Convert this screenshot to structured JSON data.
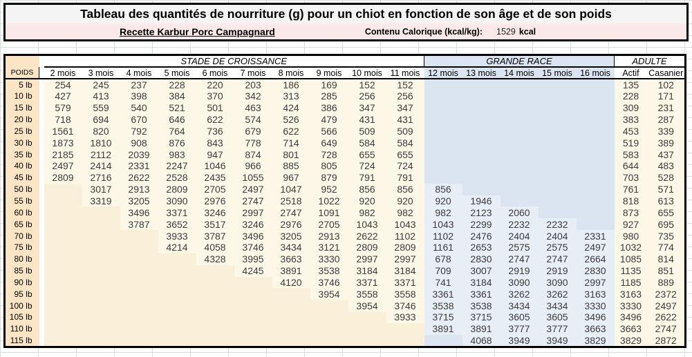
{
  "title": "Tableau des quantités de nourriture (g) pour un chiot en fonction de son âge et de son poids",
  "subtitle": {
    "recipe": "Recette Karbur Porc Campagnard",
    "calorie_label": "Contenu Calorique (kcal/kg):",
    "calorie_value": "1529",
    "calorie_unit": "kcal"
  },
  "table": {
    "corner_label": "POIDS",
    "groups": [
      {
        "label": "STADE DE CROISSANCE",
        "span": 10,
        "style": "cream"
      },
      {
        "label": "GRANDE RACE",
        "span": 5,
        "style": "blue"
      },
      {
        "label": "ADULTE",
        "span": 2,
        "style": "white"
      }
    ],
    "columns": [
      "2 mois",
      "3 mois",
      "4 mois",
      "5 mois",
      "6 mois",
      "7 mois",
      "8 mois",
      "9 mois",
      "10 mois",
      "11 mois",
      "12 mois",
      "13 mois",
      "14 mois",
      "15 mois",
      "16 mois",
      "Actif",
      "Casanier"
    ],
    "rows": [
      {
        "label": "5 lb",
        "values": [
          "254",
          "245",
          "237",
          "228",
          "220",
          "203",
          "186",
          "169",
          "152",
          "152",
          "",
          "",
          "",
          "",
          "",
          "135",
          "102"
        ]
      },
      {
        "label": "10 lb",
        "values": [
          "427",
          "413",
          "398",
          "384",
          "370",
          "342",
          "313",
          "285",
          "256",
          "256",
          "",
          "",
          "",
          "",
          "",
          "228",
          "171"
        ]
      },
      {
        "label": "15 lb",
        "values": [
          "579",
          "559",
          "540",
          "521",
          "501",
          "463",
          "424",
          "386",
          "347",
          "347",
          "",
          "",
          "",
          "",
          "",
          "309",
          "231"
        ]
      },
      {
        "label": "20 lb",
        "values": [
          "718",
          "694",
          "670",
          "646",
          "622",
          "574",
          "526",
          "479",
          "431",
          "431",
          "",
          "",
          "",
          "",
          "",
          "383",
          "287"
        ]
      },
      {
        "label": "25 lb",
        "values": [
          "1561",
          "820",
          "792",
          "764",
          "736",
          "679",
          "622",
          "566",
          "509",
          "509",
          "",
          "",
          "",
          "",
          "",
          "453",
          "339"
        ]
      },
      {
        "label": "30 lb",
        "values": [
          "1873",
          "1810",
          "908",
          "876",
          "843",
          "778",
          "714",
          "649",
          "584",
          "584",
          "",
          "",
          "",
          "",
          "",
          "519",
          "389"
        ]
      },
      {
        "label": "35 lb",
        "values": [
          "2185",
          "2112",
          "2039",
          "983",
          "947",
          "874",
          "801",
          "728",
          "655",
          "655",
          "",
          "",
          "",
          "",
          "",
          "583",
          "437"
        ]
      },
      {
        "label": "40 lb",
        "values": [
          "2497",
          "2414",
          "2331",
          "2247",
          "1046",
          "966",
          "885",
          "805",
          "724",
          "724",
          "",
          "",
          "",
          "",
          "",
          "644",
          "483"
        ]
      },
      {
        "label": "45 lb",
        "values": [
          "2809",
          "2716",
          "2622",
          "2528",
          "2435",
          "1055",
          "967",
          "879",
          "791",
          "791",
          "",
          "",
          "",
          "",
          "",
          "703",
          "528"
        ]
      },
      {
        "label": "50 lb",
        "values": [
          "",
          "3017",
          "2913",
          "2809",
          "2705",
          "2497",
          "1047",
          "952",
          "856",
          "856",
          "856",
          "",
          "",
          "",
          "",
          "761",
          "571"
        ]
      },
      {
        "label": "55 lb",
        "values": [
          "",
          "3319",
          "3205",
          "3090",
          "2976",
          "2747",
          "2518",
          "1022",
          "920",
          "920",
          "920",
          "1946",
          "",
          "",
          "",
          "818",
          "613"
        ]
      },
      {
        "label": "60 lb",
        "values": [
          "",
          "",
          "3496",
          "3371",
          "3246",
          "2997",
          "2747",
          "1091",
          "982",
          "982",
          "982",
          "2123",
          "2060",
          "",
          "",
          "873",
          "655"
        ]
      },
      {
        "label": "65 lb",
        "values": [
          "",
          "",
          "3787",
          "3652",
          "3517",
          "3246",
          "2976",
          "2705",
          "1043",
          "1043",
          "1043",
          "2299",
          "2232",
          "2232",
          "",
          "927",
          "695"
        ]
      },
      {
        "label": "70 lb",
        "values": [
          "",
          "",
          "",
          "3933",
          "3787",
          "3496",
          "3205",
          "2913",
          "2622",
          "1102",
          "1102",
          "2476",
          "2404",
          "2404",
          "2331",
          "980",
          "735"
        ]
      },
      {
        "label": "75 lb",
        "values": [
          "",
          "",
          "",
          "4214",
          "4058",
          "3746",
          "3434",
          "3121",
          "2809",
          "2809",
          "1161",
          "2653",
          "2575",
          "2575",
          "2497",
          "1032",
          "774"
        ]
      },
      {
        "label": "80 lb",
        "values": [
          "",
          "",
          "",
          "",
          "4328",
          "3995",
          "3663",
          "3330",
          "2997",
          "2997",
          "678",
          "2830",
          "2747",
          "2747",
          "2664",
          "1085",
          "814"
        ]
      },
      {
        "label": "85 lb",
        "values": [
          "",
          "",
          "",
          "",
          "",
          "4245",
          "3891",
          "3538",
          "3184",
          "3184",
          "709",
          "3007",
          "2919",
          "2919",
          "2830",
          "1135",
          "851"
        ]
      },
      {
        "label": "90 lb",
        "values": [
          "",
          "",
          "",
          "",
          "",
          "",
          "4120",
          "3746",
          "3371",
          "3371",
          "741",
          "3184",
          "3090",
          "3090",
          "2997",
          "1185",
          "889"
        ]
      },
      {
        "label": "95 lb",
        "values": [
          "",
          "",
          "",
          "",
          "",
          "",
          "",
          "3954",
          "3558",
          "3558",
          "3361",
          "3361",
          "3262",
          "3262",
          "3163",
          "3163",
          "2372"
        ]
      },
      {
        "label": "100 lb",
        "values": [
          "",
          "",
          "",
          "",
          "",
          "",
          "",
          "",
          "3954",
          "3746",
          "3538",
          "3538",
          "3434",
          "3434",
          "3330",
          "3330",
          "2497"
        ]
      },
      {
        "label": "105 lb",
        "values": [
          "",
          "",
          "",
          "",
          "",
          "",
          "",
          "",
          "",
          "3933",
          "3715",
          "3715",
          "3605",
          "3605",
          "3496",
          "3496",
          "2622"
        ]
      },
      {
        "label": "110 lb",
        "values": [
          "",
          "",
          "",
          "",
          "",
          "",
          "",
          "",
          "",
          "",
          "3891",
          "3891",
          "3777",
          "3777",
          "3663",
          "3663",
          "2747"
        ]
      },
      {
        "label": "115 lb",
        "values": [
          "",
          "",
          "",
          "",
          "",
          "",
          "",
          "",
          "",
          "",
          "",
          "4068",
          "3949",
          "3949",
          "3829",
          "3829",
          "2872"
        ]
      }
    ]
  },
  "colors": {
    "poids_column": "#fbe5c4",
    "growth_cell_data": "#fdf7e7",
    "growth_cell_empty": "#faefd9",
    "large_breed_cell_data": "#e8eef6",
    "large_breed_cell_empty": "#dbe5f1",
    "subtitle_band": "#fbe8e8",
    "title_band": "#f4f4f4",
    "border": "#000000"
  }
}
